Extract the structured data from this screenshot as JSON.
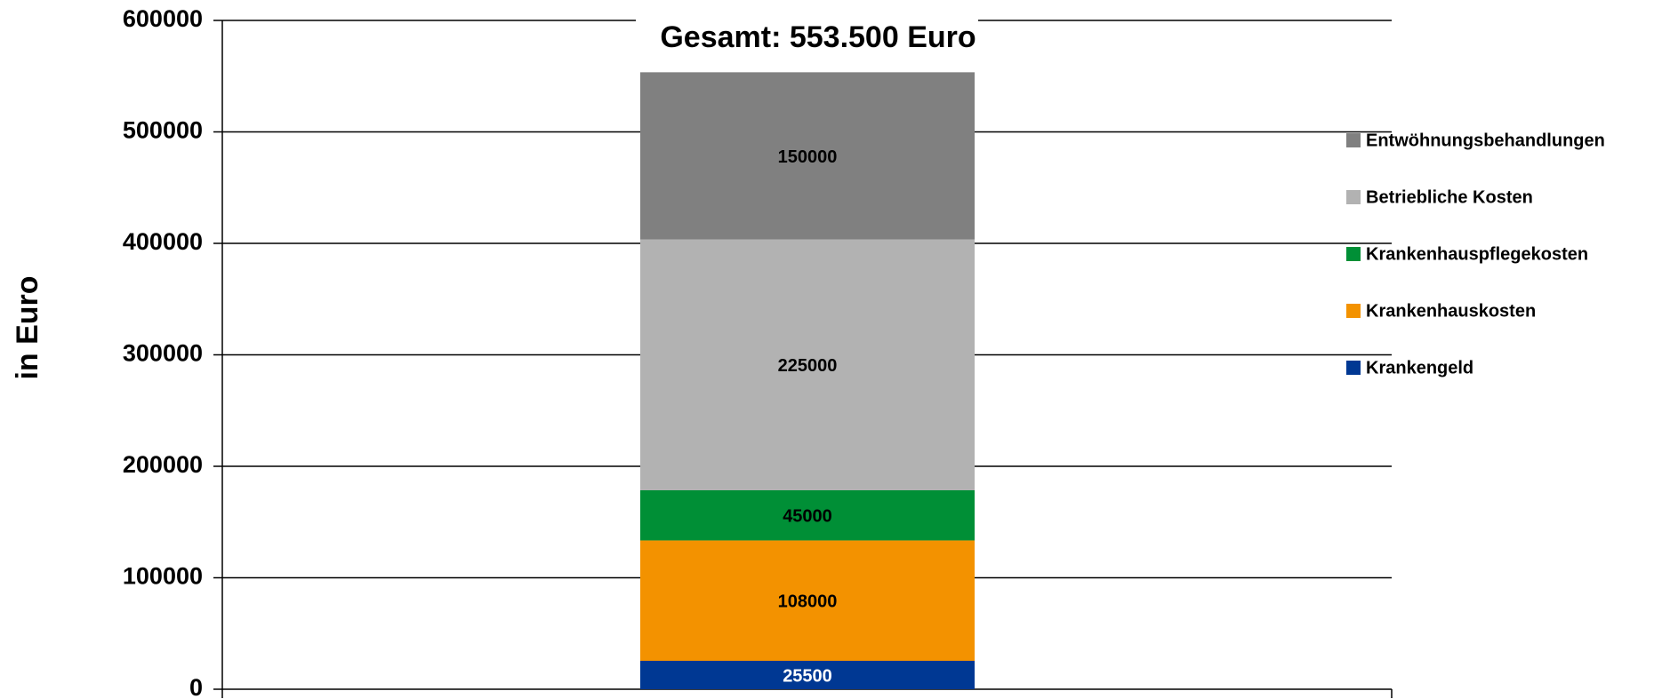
{
  "chart_data": {
    "type": "bar",
    "stacked": true,
    "title": "Gesamt: 553.500 Euro",
    "y_label": "in Euro",
    "ylim": [
      0,
      600000
    ],
    "yticks": [
      0,
      100000,
      200000,
      300000,
      400000,
      500000,
      600000
    ],
    "grid": true,
    "legend": "right",
    "series": [
      {
        "name": "Krankengeld",
        "color": "#003893",
        "values": [
          25500
        ]
      },
      {
        "name": "Krankenhauskosten",
        "color": "#f39200",
        "values": [
          108000
        ]
      },
      {
        "name": "Krankenhauspflegekosten",
        "color": "#008f36",
        "values": [
          45000
        ]
      },
      {
        "name": "Betriebliche Kosten",
        "color": "#b2b2b2",
        "values": [
          225000
        ]
      },
      {
        "name": "Entwöhnungsbehandlungen",
        "color": "#808080",
        "values": [
          150000
        ]
      }
    ]
  }
}
